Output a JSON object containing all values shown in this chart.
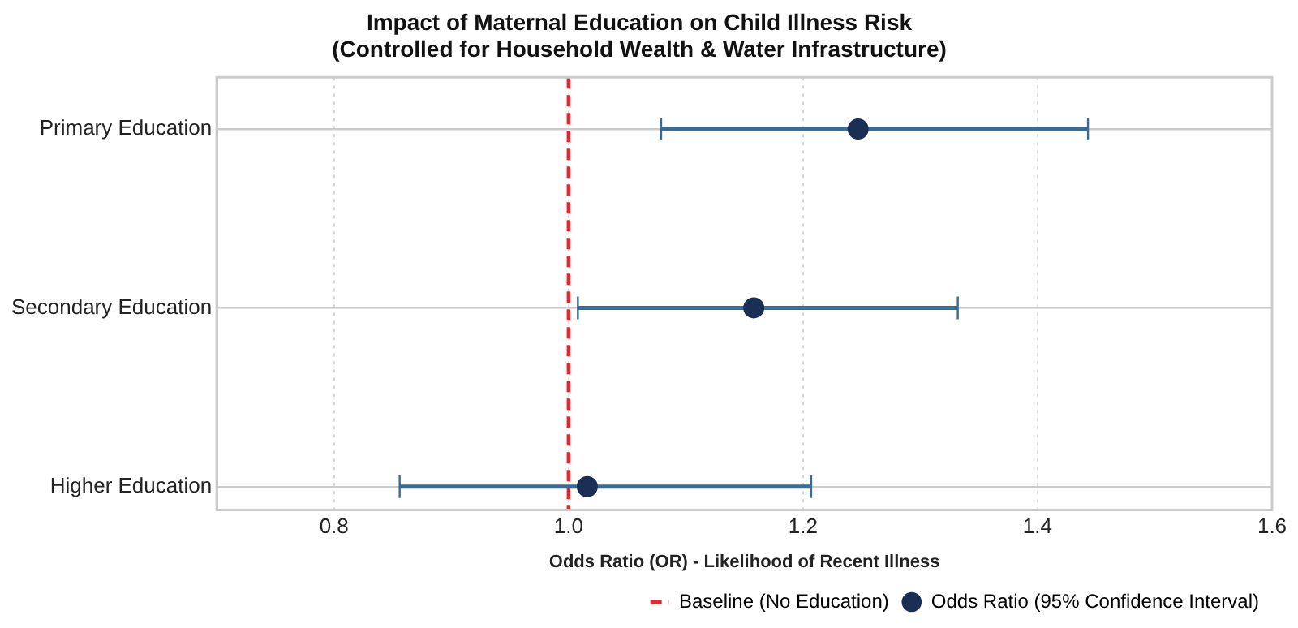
{
  "chart_data": {
    "type": "scatter",
    "orientation": "horizontal",
    "title": "Impact of Maternal Education on Child Illness Risk\n(Controlled for Household Wealth & Water Infrastructure)",
    "xlabel": "Odds Ratio (OR) - Likelihood of Recent Illness",
    "categories": [
      "Primary Education",
      "Secondary Education",
      "Higher Education"
    ],
    "series": [
      {
        "name": "Odds Ratio (95% Confidence Interval)",
        "color": "#1b2f55",
        "values": [
          1.247,
          1.158,
          1.016
        ],
        "errors": [
          [
            1.079,
            1.443
          ],
          [
            1.008,
            1.332
          ],
          [
            0.856,
            1.207
          ]
        ]
      }
    ],
    "ref_lines": [
      {
        "axis": "x",
        "value": 1.0,
        "label": "Baseline (No Education)",
        "color": "#e8262f",
        "line_style": "dashed"
      }
    ],
    "xlim": [
      0.7,
      1.6
    ],
    "xticks": [
      {
        "value": 0.8,
        "label": "0.8"
      },
      {
        "value": 1.0,
        "label": "1.0"
      },
      {
        "value": 1.2,
        "label": "1.2"
      },
      {
        "value": 1.4,
        "label": "1.4"
      },
      {
        "value": 1.6,
        "label": "1.6"
      }
    ],
    "grid": true,
    "legend": "bottom right",
    "marker": "circle"
  }
}
